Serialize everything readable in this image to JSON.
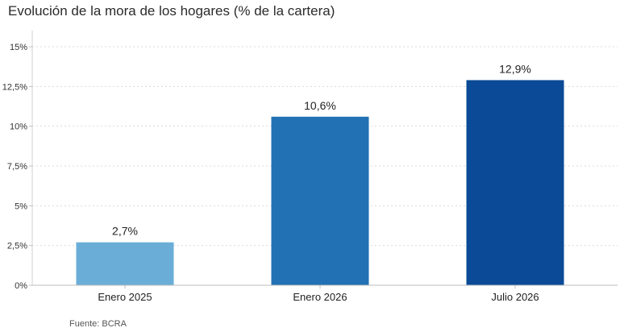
{
  "chart_data": {
    "type": "bar",
    "title": "Evolución de la mora de los hogares (% de la cartera)",
    "categories": [
      "Enero 2025",
      "Enero 2026",
      "Julio 2026"
    ],
    "values": [
      2.7,
      10.6,
      12.9
    ],
    "value_labels": [
      "2,7%",
      "10,6%",
      "12,9%"
    ],
    "bar_colors": [
      "#6aaed8",
      "#2271b5",
      "#0a4a96"
    ],
    "ylim": [
      0,
      15
    ],
    "yticks": [
      0,
      2.5,
      5,
      7.5,
      10,
      12.5,
      15
    ],
    "ytick_labels": [
      "0%",
      "2,5%",
      "5%",
      "7,5%",
      "10%",
      "12,5%",
      "15%"
    ],
    "grid": true,
    "xlabel": "",
    "ylabel": "",
    "source": "Fuente: BCRA"
  }
}
